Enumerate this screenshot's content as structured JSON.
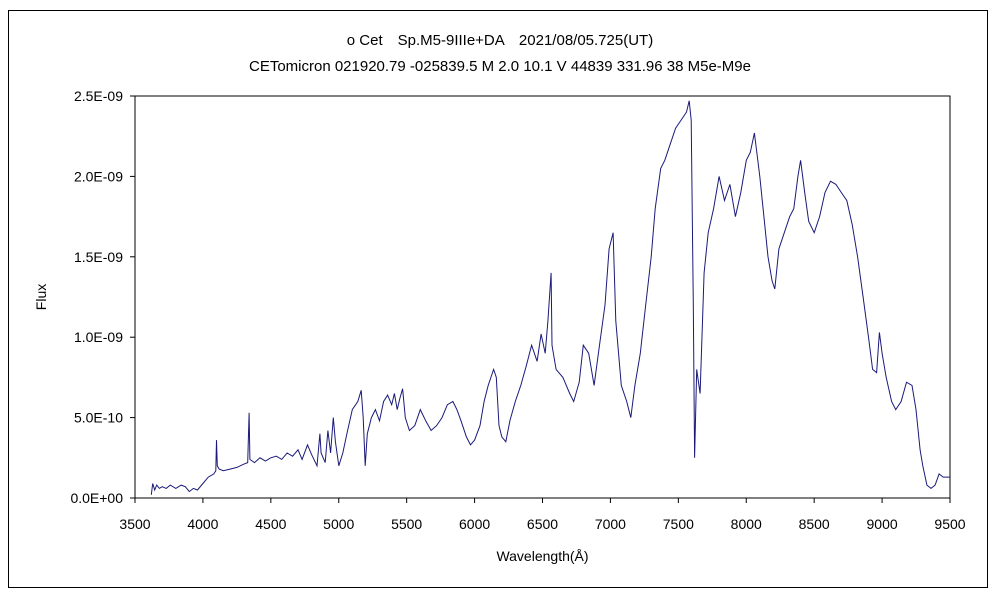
{
  "chart_data": {
    "type": "line",
    "title": "ο Cet　Sp.M5-9IIIe+DA　2021/08/05.725(UT)",
    "subtitle": "CETomicron 021920.79 -025839.5 M 2.0 10.1 V 44839 331.96 38 M5e-M9e",
    "xlabel": "Wavelength(Å)",
    "ylabel": "Flux",
    "xlim": [
      3500,
      9500
    ],
    "ylim": [
      0,
      2.5e-09
    ],
    "grid": false,
    "x_ticks": [
      "3500",
      "4000",
      "4500",
      "5000",
      "5500",
      "6000",
      "6500",
      "7000",
      "7500",
      "8000",
      "8500",
      "9000",
      "9500"
    ],
    "y_ticks": [
      "0.0E+00",
      "5.0E-10",
      "1.0E-09",
      "1.5E-09",
      "2.0E-09",
      "2.5E-09"
    ],
    "series": [
      {
        "name": "Flux",
        "color": "#1a1a7a",
        "points": [
          [
            3620,
            2e-11
          ],
          [
            3630,
            9e-11
          ],
          [
            3645,
            5e-11
          ],
          [
            3660,
            8e-11
          ],
          [
            3680,
            6e-11
          ],
          [
            3700,
            7e-11
          ],
          [
            3730,
            6e-11
          ],
          [
            3760,
            8e-11
          ],
          [
            3800,
            6e-11
          ],
          [
            3840,
            8e-11
          ],
          [
            3870,
            7e-11
          ],
          [
            3900,
            4e-11
          ],
          [
            3930,
            6e-11
          ],
          [
            3960,
            5e-11
          ],
          [
            4000,
            9e-11
          ],
          [
            4040,
            1.3e-10
          ],
          [
            4080,
            1.5e-10
          ],
          [
            4095,
            1.7e-10
          ],
          [
            4100,
            3.6e-10
          ],
          [
            4106,
            2e-10
          ],
          [
            4120,
            1.8e-10
          ],
          [
            4150,
            1.7e-10
          ],
          [
            4200,
            1.8e-10
          ],
          [
            4250,
            1.9e-10
          ],
          [
            4300,
            2.1e-10
          ],
          [
            4330,
            2.2e-10
          ],
          [
            4340,
            5.3e-10
          ],
          [
            4346,
            2.4e-10
          ],
          [
            4380,
            2.2e-10
          ],
          [
            4420,
            2.5e-10
          ],
          [
            4460,
            2.3e-10
          ],
          [
            4500,
            2.5e-10
          ],
          [
            4540,
            2.6e-10
          ],
          [
            4580,
            2.4e-10
          ],
          [
            4620,
            2.8e-10
          ],
          [
            4660,
            2.6e-10
          ],
          [
            4700,
            3e-10
          ],
          [
            4730,
            2.4e-10
          ],
          [
            4770,
            3.3e-10
          ],
          [
            4800,
            2.7e-10
          ],
          [
            4840,
            2e-10
          ],
          [
            4861,
            4e-10
          ],
          [
            4870,
            2.8e-10
          ],
          [
            4900,
            2.2e-10
          ],
          [
            4920,
            4.2e-10
          ],
          [
            4940,
            2.8e-10
          ],
          [
            4960,
            5e-10
          ],
          [
            4975,
            3.5e-10
          ],
          [
            5000,
            2e-10
          ],
          [
            5030,
            2.8e-10
          ],
          [
            5060,
            4e-10
          ],
          [
            5100,
            5.5e-10
          ],
          [
            5140,
            6e-10
          ],
          [
            5165,
            6.7e-10
          ],
          [
            5180,
            5e-10
          ],
          [
            5195,
            2e-10
          ],
          [
            5210,
            4e-10
          ],
          [
            5240,
            5e-10
          ],
          [
            5270,
            5.5e-10
          ],
          [
            5300,
            4.8e-10
          ],
          [
            5330,
            6e-10
          ],
          [
            5360,
            6.4e-10
          ],
          [
            5390,
            5.8e-10
          ],
          [
            5410,
            6.5e-10
          ],
          [
            5430,
            5.5e-10
          ],
          [
            5450,
            6.2e-10
          ],
          [
            5470,
            6.8e-10
          ],
          [
            5490,
            5e-10
          ],
          [
            5520,
            4.2e-10
          ],
          [
            5560,
            4.5e-10
          ],
          [
            5600,
            5.5e-10
          ],
          [
            5640,
            4.8e-10
          ],
          [
            5680,
            4.2e-10
          ],
          [
            5720,
            4.5e-10
          ],
          [
            5760,
            5e-10
          ],
          [
            5800,
            5.8e-10
          ],
          [
            5840,
            6e-10
          ],
          [
            5870,
            5.5e-10
          ],
          [
            5900,
            4.8e-10
          ],
          [
            5940,
            3.8e-10
          ],
          [
            5970,
            3.3e-10
          ],
          [
            6000,
            3.6e-10
          ],
          [
            6040,
            4.5e-10
          ],
          [
            6070,
            6e-10
          ],
          [
            6100,
            7e-10
          ],
          [
            6140,
            8e-10
          ],
          [
            6160,
            7.5e-10
          ],
          [
            6180,
            4.5e-10
          ],
          [
            6200,
            3.8e-10
          ],
          [
            6230,
            3.5e-10
          ],
          [
            6260,
            4.8e-10
          ],
          [
            6300,
            6e-10
          ],
          [
            6340,
            7e-10
          ],
          [
            6380,
            8.2e-10
          ],
          [
            6420,
            9.5e-10
          ],
          [
            6460,
            8.5e-10
          ],
          [
            6490,
            1.02e-09
          ],
          [
            6520,
            9e-10
          ],
          [
            6540,
            1.1e-09
          ],
          [
            6563,
            1.4e-09
          ],
          [
            6570,
            9.5e-10
          ],
          [
            6600,
            8e-10
          ],
          [
            6650,
            7.5e-10
          ],
          [
            6700,
            6.5e-10
          ],
          [
            6730,
            6e-10
          ],
          [
            6770,
            7.2e-10
          ],
          [
            6800,
            9.5e-10
          ],
          [
            6840,
            9e-10
          ],
          [
            6880,
            7e-10
          ],
          [
            6920,
            9.5e-10
          ],
          [
            6960,
            1.2e-09
          ],
          [
            6990,
            1.55e-09
          ],
          [
            7020,
            1.65e-09
          ],
          [
            7040,
            1.1e-09
          ],
          [
            7080,
            7e-10
          ],
          [
            7120,
            6e-10
          ],
          [
            7150,
            5e-10
          ],
          [
            7180,
            7e-10
          ],
          [
            7220,
            9e-10
          ],
          [
            7260,
            1.2e-09
          ],
          [
            7300,
            1.5e-09
          ],
          [
            7330,
            1.8e-09
          ],
          [
            7370,
            2.05e-09
          ],
          [
            7400,
            2.1e-09
          ],
          [
            7440,
            2.2e-09
          ],
          [
            7480,
            2.3e-09
          ],
          [
            7520,
            2.35e-09
          ],
          [
            7560,
            2.4e-09
          ],
          [
            7580,
            2.47e-09
          ],
          [
            7595,
            2.35e-09
          ],
          [
            7610,
            1.2e-09
          ],
          [
            7620,
            2.5e-10
          ],
          [
            7635,
            8e-10
          ],
          [
            7660,
            6.5e-10
          ],
          [
            7690,
            1.4e-09
          ],
          [
            7720,
            1.65e-09
          ],
          [
            7760,
            1.8e-09
          ],
          [
            7800,
            2e-09
          ],
          [
            7840,
            1.85e-09
          ],
          [
            7880,
            1.95e-09
          ],
          [
            7920,
            1.75e-09
          ],
          [
            7960,
            1.9e-09
          ],
          [
            8000,
            2.1e-09
          ],
          [
            8030,
            2.15e-09
          ],
          [
            8060,
            2.27e-09
          ],
          [
            8100,
            2e-09
          ],
          [
            8130,
            1.75e-09
          ],
          [
            8160,
            1.5e-09
          ],
          [
            8190,
            1.35e-09
          ],
          [
            8210,
            1.3e-09
          ],
          [
            8240,
            1.55e-09
          ],
          [
            8280,
            1.65e-09
          ],
          [
            8320,
            1.75e-09
          ],
          [
            8350,
            1.8e-09
          ],
          [
            8380,
            2e-09
          ],
          [
            8400,
            2.1e-09
          ],
          [
            8430,
            1.9e-09
          ],
          [
            8460,
            1.72e-09
          ],
          [
            8500,
            1.65e-09
          ],
          [
            8540,
            1.75e-09
          ],
          [
            8580,
            1.9e-09
          ],
          [
            8620,
            1.97e-09
          ],
          [
            8660,
            1.95e-09
          ],
          [
            8700,
            1.9e-09
          ],
          [
            8740,
            1.85e-09
          ],
          [
            8780,
            1.7e-09
          ],
          [
            8820,
            1.5e-09
          ],
          [
            8860,
            1.25e-09
          ],
          [
            8900,
            1e-09
          ],
          [
            8930,
            8e-10
          ],
          [
            8960,
            7.8e-10
          ],
          [
            8980,
            1.03e-09
          ],
          [
            9000,
            9e-10
          ],
          [
            9030,
            7.5e-10
          ],
          [
            9070,
            6e-10
          ],
          [
            9100,
            5.5e-10
          ],
          [
            9140,
            6e-10
          ],
          [
            9180,
            7.2e-10
          ],
          [
            9220,
            7e-10
          ],
          [
            9250,
            5.5e-10
          ],
          [
            9280,
            3e-10
          ],
          [
            9300,
            2e-10
          ],
          [
            9330,
            8e-11
          ],
          [
            9360,
            6e-11
          ],
          [
            9390,
            8e-11
          ],
          [
            9420,
            1.5e-10
          ],
          [
            9450,
            1.3e-10
          ],
          [
            9500,
            1.3e-10
          ]
        ]
      }
    ]
  }
}
